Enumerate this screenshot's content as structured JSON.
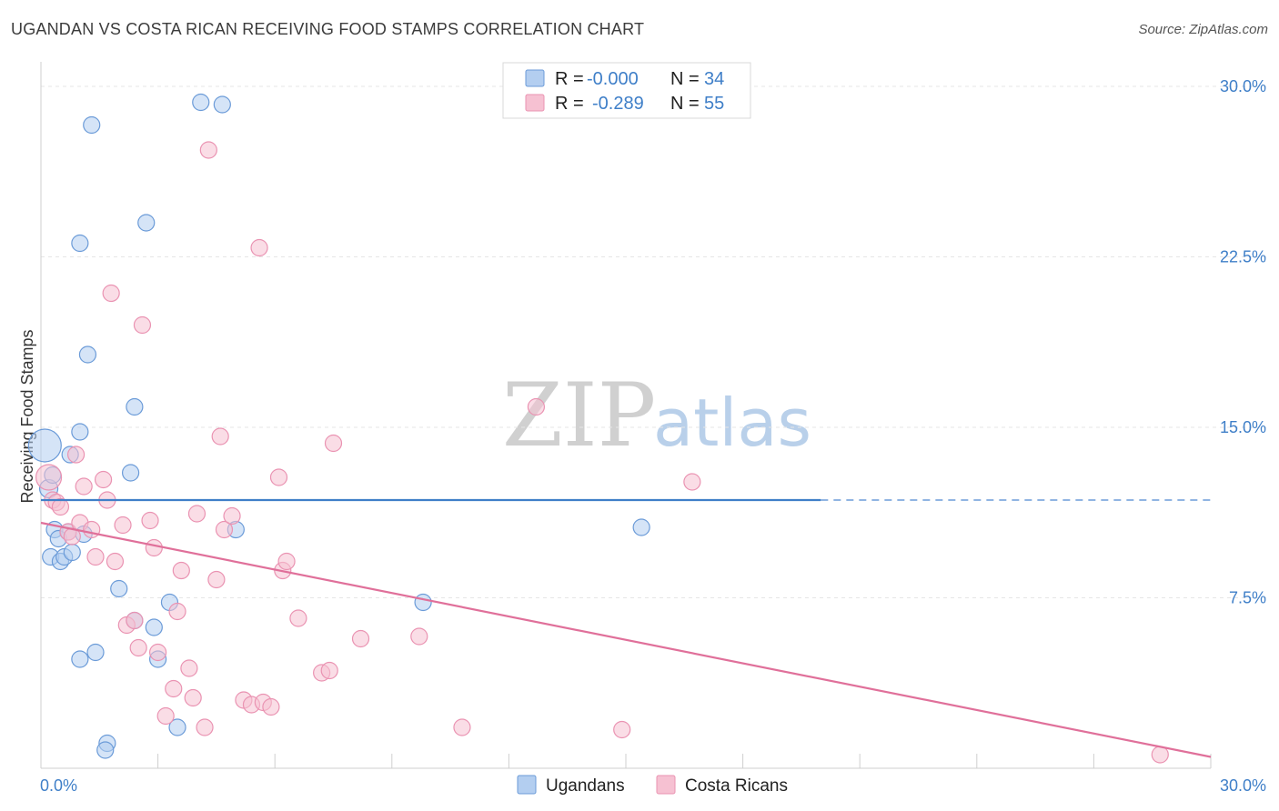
{
  "title": "UGANDAN VS COSTA RICAN RECEIVING FOOD STAMPS CORRELATION CHART",
  "source": "Source: ZipAtlas.com",
  "watermark": {
    "zip": "ZIP",
    "atlas": "atlas"
  },
  "colors": {
    "blue": "#3f7fc8",
    "blue_fill": "#b3cef0",
    "blue_stroke": "#6b9bd8",
    "pink": "#e0709a",
    "pink_fill": "#f6c1d2",
    "pink_stroke": "#ea93b2",
    "grid": "#e6e6e6",
    "axis_text": "#3f7fc8"
  },
  "legend": {
    "rows": [
      {
        "r_label": "R =",
        "r_value": "-0.000",
        "n_label": "N =",
        "n_value": "34"
      },
      {
        "r_label": "R =",
        "r_value": "-0.289",
        "n_label": "N =",
        "n_value": "55"
      }
    ]
  },
  "chart_data": {
    "type": "scatter",
    "title": "UGANDAN VS COSTA RICAN RECEIVING FOOD STAMPS CORRELATION CHART",
    "xlabel": "",
    "ylabel": "Receiving Food Stamps",
    "xlim": [
      0,
      30
    ],
    "ylim": [
      0,
      31
    ],
    "x_tick_labels": [
      "0.0%",
      "30.0%"
    ],
    "y_ticks": [
      7.5,
      15.0,
      22.5,
      30.0
    ],
    "y_tick_labels": [
      "7.5%",
      "15.0%",
      "22.5%",
      "30.0%"
    ],
    "series": [
      {
        "name": "Ugandans",
        "r": -0.0,
        "n": 34,
        "trend": {
          "x0": 0,
          "y0": 11.8,
          "x1": 20.0,
          "y1": 11.8,
          "dash_to": 30,
          "dash_y": 11.8
        },
        "points": [
          [
            0.1,
            14.2,
            18
          ],
          [
            0.2,
            12.3,
            10
          ],
          [
            0.3,
            12.9,
            9
          ],
          [
            0.25,
            9.3,
            9
          ],
          [
            0.35,
            10.5,
            9
          ],
          [
            0.45,
            10.1,
            9
          ],
          [
            0.5,
            9.1,
            9
          ],
          [
            0.6,
            9.3,
            9
          ],
          [
            0.7,
            10.4,
            9
          ],
          [
            0.75,
            13.8,
            9
          ],
          [
            0.8,
            9.5,
            9
          ],
          [
            1.0,
            14.8,
            9
          ],
          [
            1.1,
            10.3,
            9
          ],
          [
            1.0,
            23.1,
            9
          ],
          [
            1.3,
            28.3,
            9
          ],
          [
            1.2,
            18.2,
            9
          ],
          [
            1.0,
            4.8,
            9
          ],
          [
            1.4,
            5.1,
            9
          ],
          [
            1.7,
            1.1,
            9
          ],
          [
            1.65,
            0.8,
            9
          ],
          [
            2.3,
            13.0,
            9
          ],
          [
            2.4,
            15.9,
            9
          ],
          [
            2.7,
            24.0,
            9
          ],
          [
            2.0,
            7.9,
            9
          ],
          [
            2.4,
            6.5,
            9
          ],
          [
            2.9,
            6.2,
            9
          ],
          [
            3.0,
            4.8,
            9
          ],
          [
            3.3,
            7.3,
            9
          ],
          [
            3.5,
            1.8,
            9
          ],
          [
            4.1,
            29.3,
            9
          ],
          [
            4.65,
            29.2,
            9
          ],
          [
            5.0,
            10.5,
            9
          ],
          [
            9.8,
            7.3,
            9
          ],
          [
            15.4,
            10.6,
            9
          ]
        ]
      },
      {
        "name": "Costa Ricans",
        "r": -0.289,
        "n": 55,
        "trend": {
          "x0": 0,
          "y0": 10.8,
          "x1": 30,
          "y1": 0.5
        },
        "points": [
          [
            0.2,
            12.8,
            14
          ],
          [
            0.3,
            11.8,
            9
          ],
          [
            0.4,
            11.7,
            9
          ],
          [
            0.5,
            11.5,
            9
          ],
          [
            0.7,
            10.4,
            9
          ],
          [
            0.8,
            10.2,
            9
          ],
          [
            0.9,
            13.8,
            9
          ],
          [
            1.0,
            10.8,
            9
          ],
          [
            1.1,
            12.4,
            9
          ],
          [
            1.3,
            10.5,
            9
          ],
          [
            1.4,
            9.3,
            9
          ],
          [
            1.6,
            12.7,
            9
          ],
          [
            1.7,
            11.8,
            9
          ],
          [
            1.8,
            20.9,
            9
          ],
          [
            1.9,
            9.1,
            9
          ],
          [
            2.1,
            10.7,
            9
          ],
          [
            2.2,
            6.3,
            9
          ],
          [
            2.4,
            6.5,
            9
          ],
          [
            2.5,
            5.3,
            9
          ],
          [
            2.6,
            19.5,
            9
          ],
          [
            2.8,
            10.9,
            9
          ],
          [
            2.9,
            9.7,
            9
          ],
          [
            3.0,
            5.1,
            9
          ],
          [
            3.2,
            2.3,
            9
          ],
          [
            3.4,
            3.5,
            9
          ],
          [
            3.5,
            6.9,
            9
          ],
          [
            3.6,
            8.7,
            9
          ],
          [
            3.8,
            4.4,
            9
          ],
          [
            3.9,
            3.1,
            9
          ],
          [
            4.0,
            11.2,
            9
          ],
          [
            4.2,
            1.8,
            9
          ],
          [
            4.3,
            27.2,
            9
          ],
          [
            4.5,
            8.3,
            9
          ],
          [
            4.6,
            14.6,
            9
          ],
          [
            4.7,
            10.5,
            9
          ],
          [
            4.9,
            11.1,
            9
          ],
          [
            5.2,
            3.0,
            9
          ],
          [
            5.4,
            2.8,
            9
          ],
          [
            5.6,
            22.9,
            9
          ],
          [
            5.7,
            2.9,
            9
          ],
          [
            5.9,
            2.7,
            9
          ],
          [
            6.1,
            12.8,
            9
          ],
          [
            6.2,
            8.7,
            9
          ],
          [
            6.3,
            9.1,
            9
          ],
          [
            6.6,
            6.6,
            9
          ],
          [
            7.2,
            4.2,
            9
          ],
          [
            7.4,
            4.3,
            9
          ],
          [
            7.5,
            14.3,
            9
          ],
          [
            8.2,
            5.7,
            9
          ],
          [
            9.7,
            5.8,
            9
          ],
          [
            10.8,
            1.8,
            9
          ],
          [
            12.7,
            15.9,
            9
          ],
          [
            14.9,
            1.7,
            9
          ],
          [
            16.7,
            12.6,
            9
          ],
          [
            28.7,
            0.6,
            9
          ]
        ]
      }
    ]
  },
  "bottom_legend": [
    {
      "label": "Ugandans"
    },
    {
      "label": "Costa Ricans"
    }
  ]
}
